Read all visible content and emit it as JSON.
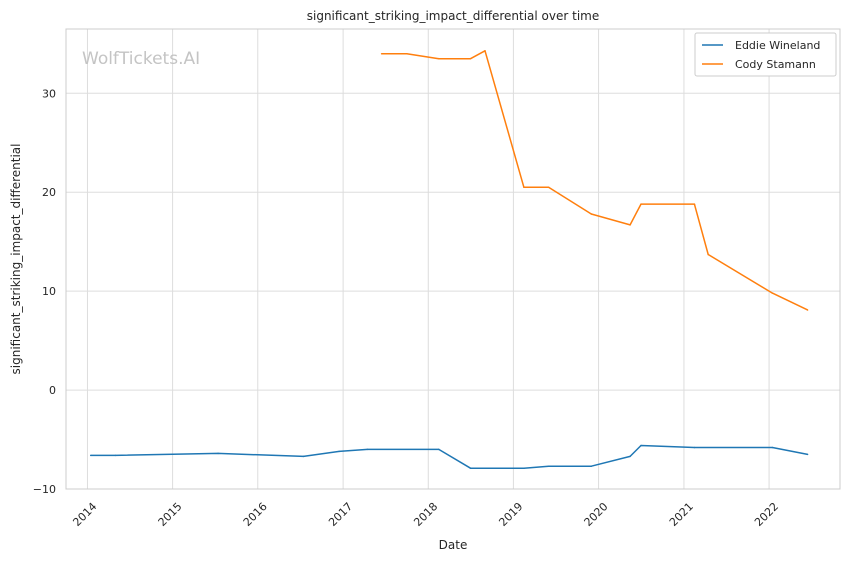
{
  "chart_data": {
    "type": "line",
    "title": "significant_striking_impact_differential over time",
    "xlabel": "Date",
    "ylabel": "significant_striking_impact_differential",
    "watermark": "WolfTickets.AI",
    "xlim": [
      "2013-10-01",
      "2022-11-01"
    ],
    "ylim": [
      -10,
      36.5
    ],
    "x_ticks": [
      "2014",
      "2015",
      "2016",
      "2017",
      "2018",
      "2019",
      "2020",
      "2021",
      "2022"
    ],
    "y_ticks": [
      -10,
      0,
      10,
      20,
      30
    ],
    "y_tick_labels": [
      "−10",
      "0",
      "10",
      "20",
      "30"
    ],
    "grid": true,
    "legend_position": "top-right",
    "series": [
      {
        "name": "Eddie Wineland",
        "color": "#1f77b4",
        "points": [
          [
            "2014-01-15",
            -6.6
          ],
          [
            "2014-05-01",
            -6.6
          ],
          [
            "2015-07-15",
            -6.4
          ],
          [
            "2016-07-15",
            -6.7
          ],
          [
            "2016-12-15",
            -6.2
          ],
          [
            "2017-04-15",
            -6.0
          ],
          [
            "2018-02-15",
            -6.0
          ],
          [
            "2018-07-01",
            -7.9
          ],
          [
            "2019-02-15",
            -7.9
          ],
          [
            "2019-06-01",
            -7.7
          ],
          [
            "2019-12-01",
            -7.7
          ],
          [
            "2020-05-15",
            -6.7
          ],
          [
            "2020-07-01",
            -5.6
          ],
          [
            "2021-02-15",
            -5.8
          ],
          [
            "2022-01-15",
            -5.8
          ],
          [
            "2022-06-15",
            -6.5
          ]
        ]
      },
      {
        "name": "Cody Stamann",
        "color": "#ff7f0e",
        "points": [
          [
            "2017-06-15",
            34.0
          ],
          [
            "2017-10-01",
            34.0
          ],
          [
            "2018-02-15",
            33.5
          ],
          [
            "2018-07-01",
            33.5
          ],
          [
            "2018-09-01",
            34.3
          ],
          [
            "2019-02-15",
            20.5
          ],
          [
            "2019-06-01",
            20.5
          ],
          [
            "2019-12-01",
            17.8
          ],
          [
            "2020-05-15",
            16.7
          ],
          [
            "2020-07-01",
            18.8
          ],
          [
            "2021-02-15",
            18.8
          ],
          [
            "2021-04-15",
            13.7
          ],
          [
            "2022-01-15",
            9.8
          ],
          [
            "2022-06-15",
            8.1
          ]
        ]
      }
    ]
  }
}
